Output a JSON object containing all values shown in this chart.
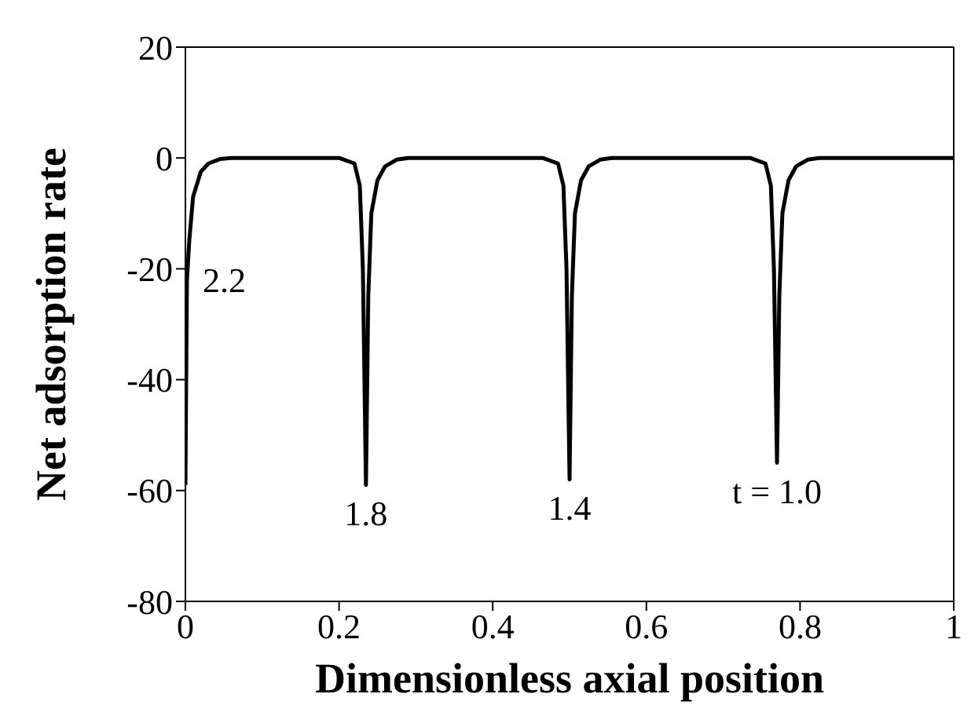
{
  "chart_data": {
    "type": "line",
    "xlabel": "Dimensionless   axial   position",
    "ylabel": "Net  adsorption  rate",
    "xlim": [
      0,
      1
    ],
    "ylim": [
      -80,
      20
    ],
    "xticks": [
      0,
      0.2,
      0.4,
      0.6,
      0.8,
      1
    ],
    "yticks": [
      -80,
      -60,
      -40,
      -20,
      0,
      20
    ],
    "grid": false,
    "legend": false,
    "marker": "none",
    "line_style": "solid",
    "series": [
      {
        "color": "#000000",
        "x": [
          0,
          0.002,
          0.005,
          0.01,
          0.02,
          0.03,
          0.045,
          0.06,
          0.2,
          0.22,
          0.227,
          0.231,
          0.235,
          0.238,
          0.242,
          0.25,
          0.26,
          0.275,
          0.29,
          0.465,
          0.485,
          0.492,
          0.496,
          0.5,
          0.503,
          0.507,
          0.515,
          0.525,
          0.54,
          0.555,
          0.735,
          0.755,
          0.762,
          0.766,
          0.77,
          0.773,
          0.777,
          0.785,
          0.795,
          0.81,
          0.825,
          1
        ],
        "values": [
          -59,
          -22,
          -15,
          -7,
          -2.5,
          -1,
          -0.2,
          0,
          0,
          -1,
          -5,
          -20,
          -59,
          -25,
          -10,
          -4,
          -1.5,
          -0.3,
          0,
          0,
          -1,
          -5,
          -20,
          -58,
          -25,
          -10,
          -4,
          -1.5,
          -0.3,
          0,
          0,
          -1,
          -5,
          -20,
          -55,
          -25,
          -10,
          -4,
          -1.5,
          -0.3,
          0,
          0
        ]
      }
    ],
    "annotations": [
      {
        "text": "2.2",
        "x": 0.002,
        "y": -22
      },
      {
        "text": "1.8",
        "x": 0.235,
        "y": -59
      },
      {
        "text": "1.4",
        "x": 0.5,
        "y": -58
      },
      {
        "text": "t = 1.0",
        "x": 0.77,
        "y": -55
      }
    ]
  }
}
